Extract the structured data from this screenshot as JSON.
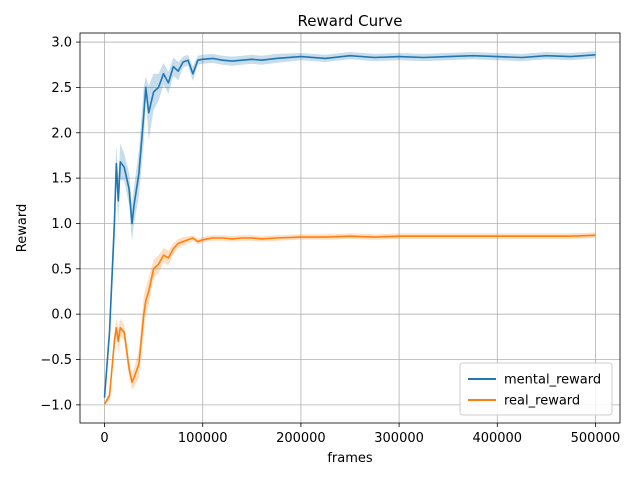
{
  "chart_data": {
    "type": "line",
    "title": "Reward Curve",
    "xlabel": "frames",
    "ylabel": "Reward",
    "xlim": [
      -25000,
      525000
    ],
    "ylim": [
      -1.2,
      3.1
    ],
    "x_ticks": [
      0,
      100000,
      200000,
      300000,
      400000,
      500000
    ],
    "x_tick_labels": [
      "0",
      "100000",
      "200000",
      "300000",
      "400000",
      "500000"
    ],
    "y_ticks": [
      -1.0,
      -0.5,
      0.0,
      0.5,
      1.0,
      1.5,
      2.0,
      2.5,
      3.0
    ],
    "y_tick_labels": [
      "−1.0",
      "−0.5",
      "0.0",
      "0.5",
      "1.0",
      "1.5",
      "2.0",
      "2.5",
      "3.0"
    ],
    "grid": true,
    "legend_position": "lower-right",
    "series": [
      {
        "name": "mental_reward",
        "color": "#1f77b4",
        "x": [
          0,
          5000,
          10000,
          12000,
          14000,
          16000,
          20000,
          25000,
          28000,
          30000,
          35000,
          40000,
          42000,
          45000,
          50000,
          55000,
          60000,
          65000,
          70000,
          75000,
          80000,
          85000,
          90000,
          95000,
          100000,
          110000,
          120000,
          130000,
          140000,
          150000,
          160000,
          175000,
          200000,
          225000,
          250000,
          275000,
          300000,
          325000,
          350000,
          375000,
          400000,
          425000,
          450000,
          475000,
          500000
        ],
        "y": [
          -0.92,
          -0.2,
          1.0,
          1.66,
          1.25,
          1.68,
          1.62,
          1.38,
          1.0,
          1.2,
          1.55,
          2.2,
          2.5,
          2.22,
          2.45,
          2.5,
          2.65,
          2.55,
          2.73,
          2.68,
          2.78,
          2.8,
          2.65,
          2.8,
          2.81,
          2.82,
          2.8,
          2.79,
          2.8,
          2.81,
          2.8,
          2.82,
          2.84,
          2.82,
          2.85,
          2.83,
          2.84,
          2.83,
          2.84,
          2.85,
          2.84,
          2.83,
          2.85,
          2.84,
          2.86
        ],
        "band": [
          0.05,
          0.1,
          0.25,
          0.2,
          0.25,
          0.2,
          0.15,
          0.18,
          0.2,
          0.2,
          0.25,
          0.3,
          0.12,
          0.3,
          0.2,
          0.15,
          0.12,
          0.12,
          0.1,
          0.1,
          0.06,
          0.06,
          0.08,
          0.05,
          0.05,
          0.05,
          0.05,
          0.05,
          0.05,
          0.05,
          0.05,
          0.05,
          0.04,
          0.04,
          0.04,
          0.04,
          0.04,
          0.04,
          0.04,
          0.04,
          0.04,
          0.04,
          0.04,
          0.04,
          0.04
        ]
      },
      {
        "name": "real_reward",
        "color": "#ff7f0e",
        "x": [
          0,
          5000,
          10000,
          12000,
          14000,
          16000,
          20000,
          25000,
          28000,
          30000,
          35000,
          40000,
          42000,
          45000,
          50000,
          55000,
          60000,
          65000,
          70000,
          75000,
          80000,
          85000,
          90000,
          95000,
          100000,
          110000,
          120000,
          130000,
          140000,
          150000,
          160000,
          175000,
          200000,
          225000,
          250000,
          275000,
          300000,
          325000,
          350000,
          375000,
          400000,
          425000,
          450000,
          475000,
          500000
        ],
        "y": [
          -0.99,
          -0.9,
          -0.3,
          -0.15,
          -0.3,
          -0.15,
          -0.2,
          -0.6,
          -0.75,
          -0.7,
          -0.55,
          0.0,
          0.15,
          0.25,
          0.5,
          0.55,
          0.65,
          0.62,
          0.72,
          0.78,
          0.8,
          0.82,
          0.84,
          0.8,
          0.82,
          0.84,
          0.84,
          0.83,
          0.84,
          0.84,
          0.83,
          0.84,
          0.85,
          0.85,
          0.86,
          0.85,
          0.86,
          0.86,
          0.86,
          0.86,
          0.86,
          0.86,
          0.86,
          0.86,
          0.87
        ],
        "band": [
          0.02,
          0.05,
          0.1,
          0.1,
          0.15,
          0.1,
          0.08,
          0.1,
          0.08,
          0.1,
          0.15,
          0.2,
          0.15,
          0.15,
          0.1,
          0.1,
          0.08,
          0.08,
          0.06,
          0.05,
          0.05,
          0.04,
          0.03,
          0.03,
          0.03,
          0.03,
          0.03,
          0.03,
          0.03,
          0.03,
          0.03,
          0.03,
          0.03,
          0.03,
          0.03,
          0.03,
          0.03,
          0.03,
          0.03,
          0.03,
          0.03,
          0.03,
          0.03,
          0.03,
          0.03
        ]
      }
    ]
  }
}
